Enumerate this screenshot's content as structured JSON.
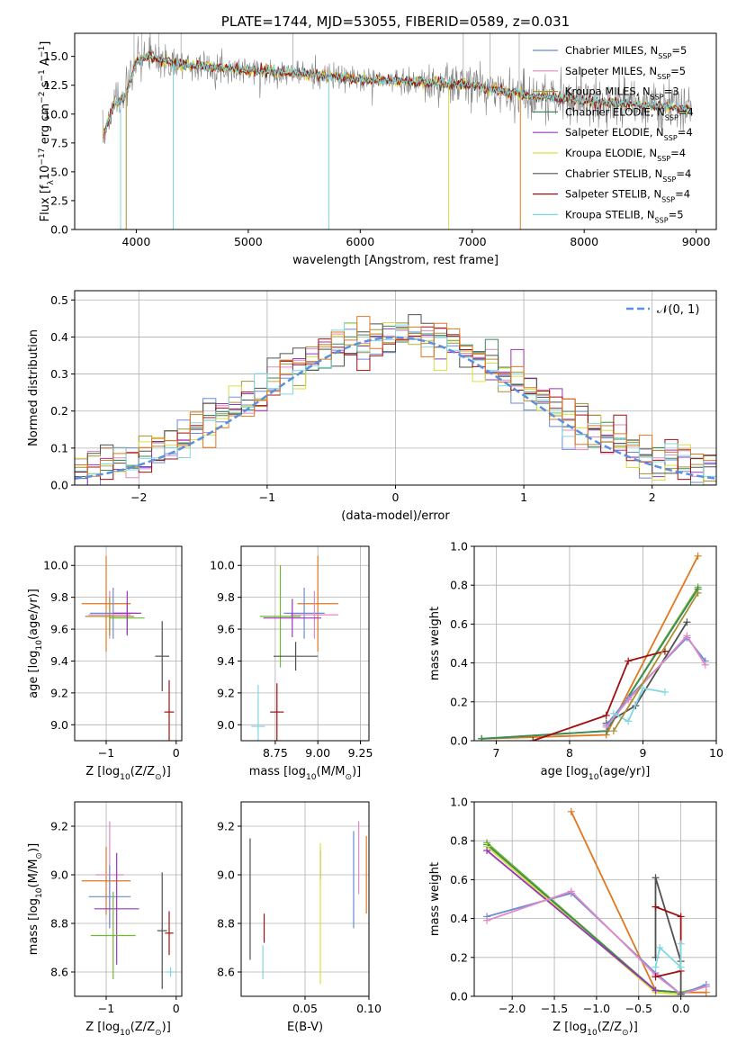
{
  "colors": {
    "chabrier_miles": "#6b8bd6",
    "salpeter_miles": "#e08ac4",
    "kroupa_miles": "#a89030",
    "chabrier_elodie": "#3a8a5a",
    "salpeter_elodie": "#9a36b8",
    "kroupa_elodie": "#d6e040",
    "chabrier_stelib": "#505050",
    "salpeter_stelib": "#a01010",
    "kroupa_stelib": "#80d8e0",
    "data": "#808080",
    "orange": "#e07820",
    "green": "#70b830",
    "normal": "#5b8fe0"
  },
  "legend": [
    {
      "key": "chabrier_miles",
      "text": "Chabrier MILES, N",
      "sub": "SSP",
      "tail": "=5"
    },
    {
      "key": "salpeter_miles",
      "text": "Salpeter MILES, N",
      "sub": "SSP",
      "tail": "=5"
    },
    {
      "key": "kroupa_miles",
      "text": "Kroupa MILES, N",
      "sub": "SSP",
      "tail": "=3"
    },
    {
      "key": "chabrier_elodie",
      "text": "Chabrier ELODIE, N",
      "sub": "SSP",
      "tail": "=4"
    },
    {
      "key": "salpeter_elodie",
      "text": "Salpeter ELODIE, N",
      "sub": "SSP",
      "tail": "=4"
    },
    {
      "key": "kroupa_elodie",
      "text": "Kroupa ELODIE, N",
      "sub": "SSP",
      "tail": "=4"
    },
    {
      "key": "chabrier_stelib",
      "text": "Chabrier STELIB, N",
      "sub": "SSP",
      "tail": "=4"
    },
    {
      "key": "salpeter_stelib",
      "text": "Salpeter STELIB, N",
      "sub": "SSP",
      "tail": "=4"
    },
    {
      "key": "kroupa_stelib",
      "text": "Kroupa STELIB, N",
      "sub": "SSP",
      "tail": "=5"
    }
  ],
  "chart_data": [
    {
      "id": "spectrum",
      "type": "line",
      "title": "PLATE=1744, MJD=53055, FIBERID=0589, z=0.031",
      "xlabel": "wavelength [Angstrom, rest frame]",
      "ylabel": {
        "a": "Flux [f",
        "sub": "λ",
        "b": "10",
        "sup1": "−17",
        "c": " erg cm",
        "sup2": "−2",
        "d": " s",
        "sup3": "−1",
        "e": " A",
        "sup4": "−1",
        "f": "]"
      },
      "xlim": [
        3450,
        9180
      ],
      "ylim": [
        0,
        17
      ],
      "xticks": [
        4000,
        5000,
        6000,
        7000,
        8000,
        9000
      ],
      "yticks": [
        0.0,
        2.5,
        5.0,
        7.5,
        10.0,
        12.5,
        15.0
      ],
      "ytick_labels": [
        "0.0",
        "2.5",
        "5.0",
        "7.5",
        "10.0",
        "12.5",
        "15.0"
      ],
      "continuum": {
        "x": [
          3700,
          3800,
          3900,
          4000,
          4100,
          4300,
          4500,
          5000,
          5500,
          6000,
          6500,
          7000,
          7500,
          8000,
          8500,
          9000
        ],
        "y": [
          8.0,
          10.8,
          11.5,
          14.5,
          15.0,
          14.5,
          14.2,
          13.8,
          13.5,
          13.0,
          12.8,
          12.5,
          11.6,
          11.2,
          10.8,
          10.4
        ]
      }
    },
    {
      "id": "residuals",
      "type": "bar",
      "xlabel": "(data-model)/error",
      "ylabel": "Normed distribution",
      "xlim": [
        -2.5,
        2.5
      ],
      "ylim": [
        0,
        0.525
      ],
      "xticks": [
        -2,
        -1,
        0,
        1,
        2
      ],
      "xtick_labels": [
        "−2",
        "−1",
        "0",
        "1",
        "2"
      ],
      "yticks": [
        0.0,
        0.1,
        0.2,
        0.3,
        0.4,
        0.5
      ],
      "ytick_labels": [
        "0.0",
        "0.1",
        "0.2",
        "0.3",
        "0.4",
        "0.5"
      ],
      "legend_label": "𝒩(0, 1)",
      "bin_width": 0.1,
      "bin_start": -2.5
    },
    {
      "id": "age_vs_z",
      "type": "scatter",
      "xlabel": {
        "a": "Z [log",
        "sub": "10",
        "b": "(Z/Z",
        "sub2": "⊙",
        "c": ")]"
      },
      "ylabel": {
        "a": "age  [log",
        "sub": "10",
        "b": "(age/yr)]"
      },
      "xlim": [
        -1.45,
        0.08
      ],
      "ylim": [
        8.9,
        10.12
      ],
      "xticks": [
        -1,
        0
      ],
      "xtick_labels": [
        "−1",
        "0"
      ],
      "yticks": [
        9.0,
        9.2,
        9.4,
        9.6,
        9.8,
        10.0
      ],
      "ytick_labels": [
        "9.0",
        "9.2",
        "9.4",
        "9.6",
        "9.8",
        "10.0"
      ],
      "points": [
        {
          "c": "orange",
          "x": -1.0,
          "y": 9.76,
          "xe": 0.35,
          "ye": 0.3
        },
        {
          "c": "chabrier_miles",
          "x": -0.9,
          "y": 9.7,
          "xe": 0.33,
          "ye": 0.16
        },
        {
          "c": "salpeter_miles",
          "x": -0.95,
          "y": 9.69,
          "xe": 0.3,
          "ye": 0.15
        },
        {
          "c": "kroupa_miles",
          "x": -0.95,
          "y": 9.68,
          "xe": 0.35,
          "ye": 0.12
        },
        {
          "c": "green",
          "x": -0.7,
          "y": 9.67,
          "xe": 0.25,
          "ye": 0.1
        },
        {
          "c": "salpeter_elodie",
          "x": -0.7,
          "y": 9.7,
          "xe": 0.2,
          "ye": 0.14
        },
        {
          "c": "chabrier_stelib",
          "x": -0.2,
          "y": 9.43,
          "xe": 0.1,
          "ye": 0.22
        },
        {
          "c": "salpeter_stelib",
          "x": -0.1,
          "y": 9.08,
          "xe": 0.07,
          "ye": 0.2
        }
      ]
    },
    {
      "id": "age_vs_mass",
      "type": "scatter",
      "xlabel": {
        "a": "mass [log",
        "sub": "10",
        "b": "(M/M",
        "sub2": "⊙",
        "c": ")]"
      },
      "ylabel": "",
      "xlim": [
        8.55,
        9.3
      ],
      "ylim": [
        8.9,
        10.12
      ],
      "xticks": [
        8.75,
        9.0,
        9.25
      ],
      "xtick_labels": [
        "8.75",
        "9.00",
        "9.25"
      ],
      "yticks": [
        9.0,
        9.2,
        9.4,
        9.6,
        9.8,
        10.0
      ],
      "ytick_labels": [
        "9.0",
        "9.2",
        "9.4",
        "9.6",
        "9.8",
        "10.0"
      ],
      "points": [
        {
          "c": "orange",
          "x": 9.0,
          "y": 9.76,
          "xe": 0.12,
          "ye": 0.3
        },
        {
          "c": "chabrier_miles",
          "x": 8.92,
          "y": 9.7,
          "xe": 0.12,
          "ye": 0.16
        },
        {
          "c": "salpeter_miles",
          "x": 8.98,
          "y": 9.69,
          "xe": 0.14,
          "ye": 0.15
        },
        {
          "c": "green",
          "x": 8.78,
          "y": 9.68,
          "xe": 0.12,
          "ye": 0.32
        },
        {
          "c": "salpeter_elodie",
          "x": 8.85,
          "y": 9.67,
          "xe": 0.17,
          "ye": 0.12
        },
        {
          "c": "kroupa_stelib",
          "x": 8.65,
          "y": 8.99,
          "xe": 0.04,
          "ye": 0.26
        },
        {
          "c": "chabrier_stelib",
          "x": 8.87,
          "y": 9.43,
          "xe": 0.13,
          "ye": 0.09
        },
        {
          "c": "salpeter_stelib",
          "x": 8.76,
          "y": 9.08,
          "xe": 0.04,
          "ye": 0.18
        }
      ]
    },
    {
      "id": "weight_vs_age",
      "type": "line",
      "xlabel": {
        "a": "age  [log",
        "sub": "10",
        "b": "(age/yr)]"
      },
      "ylabel": "mass weight",
      "xlim": [
        6.7,
        10.0
      ],
      "ylim": [
        0.0,
        1.0
      ],
      "xticks": [
        7,
        8,
        9,
        10
      ],
      "xtick_labels": [
        "7",
        "8",
        "9",
        "10"
      ],
      "yticks": [
        0.0,
        0.2,
        0.4,
        0.6,
        0.8,
        1.0
      ],
      "ytick_labels": [
        "0.0",
        "0.2",
        "0.4",
        "0.6",
        "0.8",
        "1.0"
      ],
      "series": [
        {
          "c": "orange",
          "x": [
            6.8,
            8.5,
            9.75
          ],
          "y": [
            0.01,
            0.03,
            0.95
          ]
        },
        {
          "c": "green",
          "x": [
            6.8,
            8.5,
            9.75
          ],
          "y": [
            0.01,
            0.05,
            0.79
          ]
        },
        {
          "c": "chabrier_elodie",
          "x": [
            6.8,
            8.5,
            9.75
          ],
          "y": [
            0.01,
            0.05,
            0.78
          ]
        },
        {
          "c": "salpeter_stelib",
          "x": [
            7.5,
            8.5,
            8.8,
            9.3
          ],
          "y": [
            0.0,
            0.13,
            0.41,
            0.46
          ]
        },
        {
          "c": "chabrier_stelib",
          "x": [
            8.5,
            8.9,
            9.6
          ],
          "y": [
            0.09,
            0.18,
            0.61
          ]
        },
        {
          "c": "chabrier_miles",
          "x": [
            8.5,
            8.8,
            9.6,
            9.85
          ],
          "y": [
            0.08,
            0.22,
            0.53,
            0.41
          ]
        },
        {
          "c": "salpeter_miles",
          "x": [
            8.5,
            8.8,
            9.6,
            9.85
          ],
          "y": [
            0.07,
            0.21,
            0.54,
            0.39
          ]
        },
        {
          "c": "kroupa_stelib",
          "x": [
            8.6,
            8.8,
            9.0,
            9.3
          ],
          "y": [
            0.14,
            0.1,
            0.27,
            0.25
          ]
        },
        {
          "c": "kroupa_miles",
          "x": [
            8.6,
            9.75
          ],
          "y": [
            0.05,
            0.76
          ]
        }
      ]
    },
    {
      "id": "mass_vs_z",
      "type": "scatter",
      "xlabel": {
        "a": "Z [log",
        "sub": "10",
        "b": "(Z/Z",
        "sub2": "⊙",
        "c": ")]"
      },
      "ylabel": {
        "a": "mass [log",
        "sub": "10",
        "b": "(M/M",
        "sub2": "⊙",
        "c": ")]"
      },
      "xlim": [
        -1.45,
        0.08
      ],
      "ylim": [
        8.5,
        9.3
      ],
      "xticks": [
        -1,
        0
      ],
      "xtick_labels": [
        "−1",
        "0"
      ],
      "yticks": [
        8.6,
        8.8,
        9.0,
        9.2
      ],
      "ytick_labels": [
        "8.6",
        "8.8",
        "9.0",
        "9.2"
      ],
      "points": [
        {
          "c": "orange",
          "x": -1.0,
          "y": 8.975,
          "xe": 0.35,
          "ye": 0.14
        },
        {
          "c": "salpeter_miles",
          "x": -0.95,
          "y": 9.0,
          "xe": 0.2,
          "ye": 0.22
        },
        {
          "c": "chabrier_miles",
          "x": -0.95,
          "y": 8.91,
          "xe": 0.3,
          "ye": 0.13
        },
        {
          "c": "salpeter_elodie",
          "x": -0.85,
          "y": 8.86,
          "xe": 0.32,
          "ye": 0.23
        },
        {
          "c": "green",
          "x": -0.9,
          "y": 8.75,
          "xe": 0.32,
          "ye": 0.18
        },
        {
          "c": "chabrier_stelib",
          "x": -0.2,
          "y": 8.77,
          "xe": 0.07,
          "ye": 0.24
        },
        {
          "c": "salpeter_stelib",
          "x": -0.1,
          "y": 8.76,
          "xe": 0.06,
          "ye": 0.09
        },
        {
          "c": "kroupa_stelib",
          "x": -0.08,
          "y": 8.6,
          "xe": 0.06,
          "ye": 0.02
        }
      ]
    },
    {
      "id": "mass_vs_ebv",
      "type": "scatter",
      "xlabel": "E(B-V)",
      "ylabel": "",
      "xlim": [
        0.0,
        0.1
      ],
      "ylim": [
        8.5,
        9.3
      ],
      "xticks": [
        0.05,
        0.1
      ],
      "xtick_labels": [
        "0.05",
        "0.10"
      ],
      "yticks": [
        8.6,
        8.8,
        9.0,
        9.2
      ],
      "ytick_labels": [
        "8.6",
        "8.8",
        "9.0",
        "9.2"
      ],
      "points": [
        {
          "c": "chabrier_stelib",
          "x": 0.007,
          "y": 8.9,
          "xe": 0,
          "ye": 0.25
        },
        {
          "c": "salpeter_stelib",
          "x": 0.018,
          "y": 8.78,
          "xe": 0,
          "ye": 0.06
        },
        {
          "c": "kroupa_stelib",
          "x": 0.017,
          "y": 8.64,
          "xe": 0,
          "ye": 0.07
        },
        {
          "c": "salpeter_elodie",
          "x": 0.062,
          "y": 9.04,
          "xe": 0,
          "ye": 0.06
        },
        {
          "c": "kroupa_elodie",
          "x": 0.062,
          "y": 8.84,
          "xe": 0,
          "ye": 0.29
        },
        {
          "c": "chabrier_miles",
          "x": 0.088,
          "y": 8.98,
          "xe": 0,
          "ye": 0.2
        },
        {
          "c": "salpeter_miles",
          "x": 0.092,
          "y": 9.07,
          "xe": 0,
          "ye": 0.15
        },
        {
          "c": "orange",
          "x": 0.098,
          "y": 9.0,
          "xe": 0,
          "ye": 0.16
        }
      ]
    },
    {
      "id": "weight_vs_z",
      "type": "line",
      "xlabel": {
        "a": "Z [log",
        "sub": "10",
        "b": "(Z/Z",
        "sub2": "⊙",
        "c": ")]"
      },
      "ylabel": "mass weight",
      "xlim": [
        -2.45,
        0.42
      ],
      "ylim": [
        0.0,
        1.0
      ],
      "xticks": [
        -2.0,
        -1.5,
        -1.0,
        -0.5,
        0.0
      ],
      "xtick_labels": [
        "−2.0",
        "−1.5",
        "−1.0",
        "−0.5",
        "0.0"
      ],
      "yticks": [
        0.0,
        0.2,
        0.4,
        0.6,
        0.8,
        1.0
      ],
      "ytick_labels": [
        "0.0",
        "0.2",
        "0.4",
        "0.6",
        "0.8",
        "1.0"
      ],
      "series": [
        {
          "c": "orange",
          "x": [
            -1.3,
            -0.3,
            0.0,
            0.3
          ],
          "y": [
            0.95,
            0.03,
            0.02,
            0.02
          ]
        },
        {
          "c": "green",
          "x": [
            -2.3,
            -0.3,
            0.0,
            0.3
          ],
          "y": [
            0.79,
            0.03,
            0.02,
            0.05
          ]
        },
        {
          "c": "chabrier_elodie",
          "x": [
            -2.3,
            -0.3,
            0.0
          ],
          "y": [
            0.78,
            0.03,
            0.02
          ]
        },
        {
          "c": "kroupa_elodie",
          "x": [
            -2.3,
            -0.3,
            0.0
          ],
          "y": [
            0.77,
            0.02,
            0.01
          ]
        },
        {
          "c": "salpeter_elodie",
          "x": [
            -2.3,
            -0.3
          ],
          "y": [
            0.75,
            0.03
          ]
        },
        {
          "c": "chabrier_miles",
          "x": [
            -2.3,
            -1.3,
            -0.3,
            0.0,
            0.3
          ],
          "y": [
            0.41,
            0.53,
            0.12,
            0.01,
            0.06
          ]
        },
        {
          "c": "salpeter_miles",
          "x": [
            -2.3,
            -1.3,
            -0.3,
            0.0,
            0.3
          ],
          "y": [
            0.39,
            0.54,
            0.11,
            0.01,
            0.05
          ]
        },
        {
          "c": "chabrier_stelib",
          "x": [
            -0.3,
            -0.3,
            0.0,
            0.0
          ],
          "y": [
            0.2,
            0.61,
            0.18,
            0.01
          ]
        },
        {
          "c": "salpeter_stelib",
          "x": [
            -0.3,
            0.0,
            0.0,
            -0.3
          ],
          "y": [
            0.46,
            0.41,
            0.13,
            0.1
          ]
        },
        {
          "c": "kroupa_stelib",
          "x": [
            -0.3,
            -0.25,
            0.0,
            0.0
          ],
          "y": [
            0.15,
            0.25,
            0.15,
            0.27
          ]
        }
      ]
    }
  ]
}
